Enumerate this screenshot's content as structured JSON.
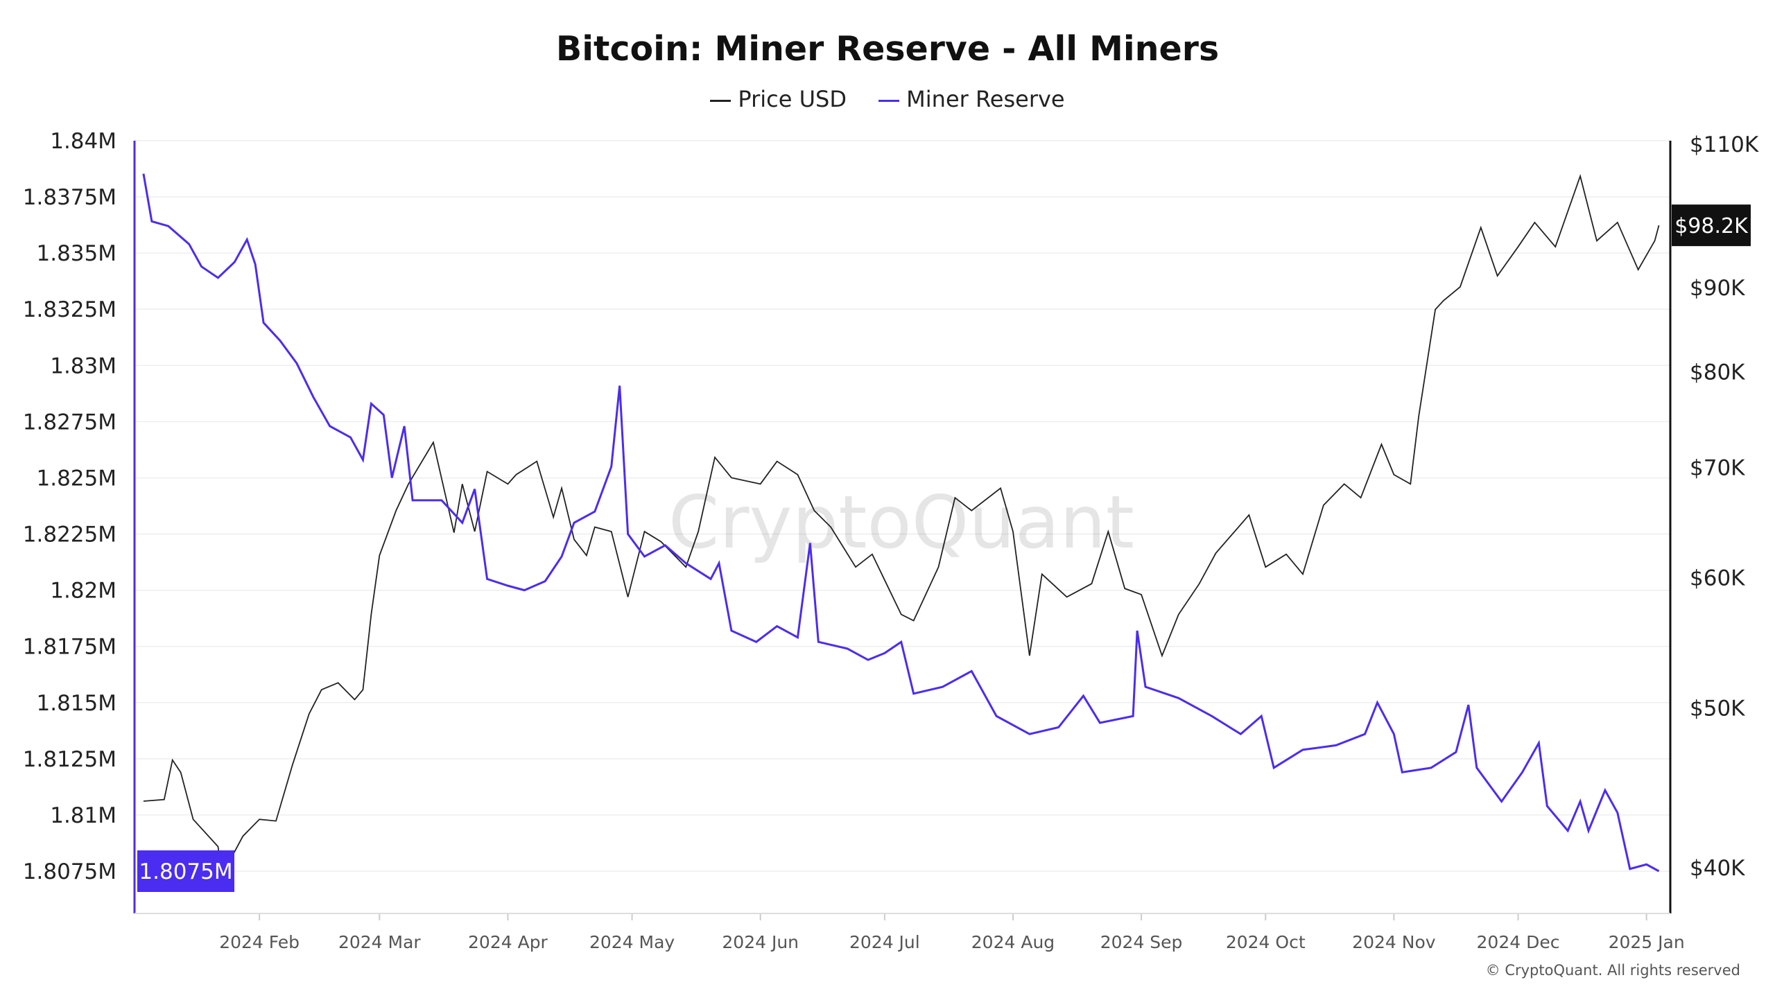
{
  "chart_data": {
    "type": "line",
    "title": "Bitcoin: Miner Reserve - All Miners",
    "legend": [
      "Price USD",
      "Miner Reserve"
    ],
    "legend_placement": "top-center",
    "colors": {
      "price": "#222222",
      "reserve": "#4a2df0"
    },
    "watermark": "CryptoQuant",
    "copyright": "© CryptoQuant. All rights reserved",
    "grid": "horizontal",
    "left_axis": {
      "ticks": [
        "1.84M",
        "1.8375M",
        "1.835M",
        "1.8325M",
        "1.83M",
        "1.8275M",
        "1.825M",
        "1.8225M",
        "1.82M",
        "1.8175M",
        "1.815M",
        "1.8125M",
        "1.81M",
        "1.8075M"
      ],
      "range": [
        1.8075,
        1.84
      ],
      "current_label": "1.8075M"
    },
    "right_axis": {
      "scale": "log",
      "ticks": [
        "$110K",
        "$90K",
        "$80K",
        "$70K",
        "$60K",
        "$50K",
        "$40K"
      ],
      "tick_values": [
        110000,
        90000,
        80000,
        70000,
        60000,
        50000,
        40000
      ],
      "current_label": "$98.2K"
    },
    "x_ticks": [
      "2024 Feb",
      "2024 Mar",
      "2024 Apr",
      "2024 May",
      "2024 Jun",
      "2024 Jul",
      "2024 Aug",
      "2024 Sep",
      "2024 Oct",
      "2024 Nov",
      "2024 Dec",
      "2025 Jan"
    ],
    "x_tick_dates": [
      "2024-02-01",
      "2024-03-01",
      "2024-04-01",
      "2024-05-01",
      "2024-06-01",
      "2024-07-01",
      "2024-08-01",
      "2024-09-01",
      "2024-10-01",
      "2024-11-01",
      "2024-12-01",
      "2025-01-01"
    ],
    "series": [
      {
        "name": "Price USD",
        "axis": "right",
        "points": [
          [
            "2024-01-04",
            43900
          ],
          [
            "2024-01-09",
            44000
          ],
          [
            "2024-01-11",
            46500
          ],
          [
            "2024-01-13",
            45700
          ],
          [
            "2024-01-16",
            42800
          ],
          [
            "2024-01-22",
            41200
          ],
          [
            "2024-01-23",
            39600
          ],
          [
            "2024-01-28",
            41800
          ],
          [
            "2024-02-01",
            42800
          ],
          [
            "2024-02-05",
            42700
          ],
          [
            "2024-02-09",
            46200
          ],
          [
            "2024-02-13",
            49600
          ],
          [
            "2024-02-16",
            51300
          ],
          [
            "2024-02-20",
            51800
          ],
          [
            "2024-02-24",
            50600
          ],
          [
            "2024-02-26",
            51300
          ],
          [
            "2024-02-28",
            57000
          ],
          [
            "2024-03-01",
            61900
          ],
          [
            "2024-03-05",
            65900
          ],
          [
            "2024-03-08",
            68400
          ],
          [
            "2024-03-14",
            72500
          ],
          [
            "2024-03-19",
            63900
          ],
          [
            "2024-03-21",
            68400
          ],
          [
            "2024-03-24",
            64000
          ],
          [
            "2024-03-27",
            69600
          ],
          [
            "2024-04-01",
            68400
          ],
          [
            "2024-04-03",
            69300
          ],
          [
            "2024-04-08",
            70600
          ],
          [
            "2024-04-12",
            65300
          ],
          [
            "2024-04-14",
            68000
          ],
          [
            "2024-04-17",
            63300
          ],
          [
            "2024-04-20",
            61900
          ],
          [
            "2024-04-22",
            64400
          ],
          [
            "2024-04-26",
            64000
          ],
          [
            "2024-04-30",
            58400
          ],
          [
            "2024-05-04",
            64000
          ],
          [
            "2024-05-08",
            63100
          ],
          [
            "2024-05-14",
            60900
          ],
          [
            "2024-05-17",
            64000
          ],
          [
            "2024-05-21",
            71000
          ],
          [
            "2024-05-25",
            69000
          ],
          [
            "2024-06-01",
            68400
          ],
          [
            "2024-06-05",
            70600
          ],
          [
            "2024-06-10",
            69300
          ],
          [
            "2024-06-14",
            65900
          ],
          [
            "2024-06-18",
            64400
          ],
          [
            "2024-06-24",
            60900
          ],
          [
            "2024-06-28",
            62000
          ],
          [
            "2024-07-05",
            57000
          ],
          [
            "2024-07-08",
            56500
          ],
          [
            "2024-07-14",
            60900
          ],
          [
            "2024-07-18",
            67100
          ],
          [
            "2024-07-22",
            65900
          ],
          [
            "2024-07-29",
            68000
          ],
          [
            "2024-08-01",
            64000
          ],
          [
            "2024-08-05",
            53800
          ],
          [
            "2024-08-08",
            60300
          ],
          [
            "2024-08-14",
            58400
          ],
          [
            "2024-08-20",
            59500
          ],
          [
            "2024-08-24",
            64000
          ],
          [
            "2024-08-28",
            59100
          ],
          [
            "2024-09-01",
            58600
          ],
          [
            "2024-09-06",
            53800
          ],
          [
            "2024-09-10",
            57000
          ],
          [
            "2024-09-15",
            59500
          ],
          [
            "2024-09-19",
            62100
          ],
          [
            "2024-09-27",
            65500
          ],
          [
            "2024-10-01",
            60900
          ],
          [
            "2024-10-06",
            62000
          ],
          [
            "2024-10-10",
            60300
          ],
          [
            "2024-10-15",
            66400
          ],
          [
            "2024-10-20",
            68400
          ],
          [
            "2024-10-24",
            67100
          ],
          [
            "2024-10-29",
            72300
          ],
          [
            "2024-11-01",
            69300
          ],
          [
            "2024-11-05",
            68400
          ],
          [
            "2024-11-07",
            75200
          ],
          [
            "2024-11-11",
            87300
          ],
          [
            "2024-11-13",
            88400
          ],
          [
            "2024-11-17",
            90100
          ],
          [
            "2024-11-22",
            97900
          ],
          [
            "2024-11-26",
            91500
          ],
          [
            "2024-12-01",
            95300
          ],
          [
            "2024-12-05",
            98600
          ],
          [
            "2024-12-10",
            95300
          ],
          [
            "2024-12-16",
            105200
          ],
          [
            "2024-12-20",
            96100
          ],
          [
            "2024-12-25",
            98600
          ],
          [
            "2024-12-30",
            92300
          ],
          [
            "2025-01-03",
            96100
          ],
          [
            "2025-01-04",
            98200
          ]
        ]
      },
      {
        "name": "Miner Reserve",
        "axis": "left",
        "unit": "M BTC",
        "points": [
          [
            "2024-01-04",
            1.83853
          ],
          [
            "2024-01-06",
            1.83641
          ],
          [
            "2024-01-10",
            1.8362
          ],
          [
            "2024-01-15",
            1.8354
          ],
          [
            "2024-01-18",
            1.8344
          ],
          [
            "2024-01-22",
            1.8339
          ],
          [
            "2024-01-26",
            1.8346
          ],
          [
            "2024-01-29",
            1.8356
          ],
          [
            "2024-01-31",
            1.8345
          ],
          [
            "2024-02-02",
            1.8319
          ],
          [
            "2024-02-06",
            1.8311
          ],
          [
            "2024-02-10",
            1.8301
          ],
          [
            "2024-02-14",
            1.8286
          ],
          [
            "2024-02-18",
            1.8273
          ],
          [
            "2024-02-23",
            1.8268
          ],
          [
            "2024-02-26",
            1.8258
          ],
          [
            "2024-02-28",
            1.8283
          ],
          [
            "2024-03-02",
            1.8278
          ],
          [
            "2024-03-04",
            1.825
          ],
          [
            "2024-03-07",
            1.8273
          ],
          [
            "2024-03-09",
            1.824
          ],
          [
            "2024-03-16",
            1.824
          ],
          [
            "2024-03-21",
            1.823
          ],
          [
            "2024-03-24",
            1.8245
          ],
          [
            "2024-03-27",
            1.8205
          ],
          [
            "2024-04-01",
            1.8202
          ],
          [
            "2024-04-05",
            1.82
          ],
          [
            "2024-04-10",
            1.8204
          ],
          [
            "2024-04-14",
            1.8215
          ],
          [
            "2024-04-17",
            1.823
          ],
          [
            "2024-04-22",
            1.8235
          ],
          [
            "2024-04-26",
            1.8255
          ],
          [
            "2024-04-28",
            1.8291
          ],
          [
            "2024-04-30",
            1.8225
          ],
          [
            "2024-05-04",
            1.8215
          ],
          [
            "2024-05-09",
            1.822
          ],
          [
            "2024-05-14",
            1.8212
          ],
          [
            "2024-05-20",
            1.8205
          ],
          [
            "2024-05-22",
            1.8212
          ],
          [
            "2024-05-25",
            1.8182
          ],
          [
            "2024-05-31",
            1.8177
          ],
          [
            "2024-06-05",
            1.8184
          ],
          [
            "2024-06-10",
            1.8179
          ],
          [
            "2024-06-13",
            1.8221
          ],
          [
            "2024-06-15",
            1.8177
          ],
          [
            "2024-06-22",
            1.8174
          ],
          [
            "2024-06-27",
            1.8169
          ],
          [
            "2024-07-01",
            1.8172
          ],
          [
            "2024-07-05",
            1.8177
          ],
          [
            "2024-07-08",
            1.8154
          ],
          [
            "2024-07-15",
            1.8157
          ],
          [
            "2024-07-22",
            1.8164
          ],
          [
            "2024-07-28",
            1.8144
          ],
          [
            "2024-08-05",
            1.8136
          ],
          [
            "2024-08-12",
            1.8139
          ],
          [
            "2024-08-18",
            1.8153
          ],
          [
            "2024-08-22",
            1.8141
          ],
          [
            "2024-08-30",
            1.8144
          ],
          [
            "2024-08-31",
            1.8182
          ],
          [
            "2024-09-02",
            1.8157
          ],
          [
            "2024-09-10",
            1.8152
          ],
          [
            "2024-09-18",
            1.8144
          ],
          [
            "2024-09-25",
            1.8136
          ],
          [
            "2024-09-30",
            1.8144
          ],
          [
            "2024-10-03",
            1.8121
          ],
          [
            "2024-10-10",
            1.8129
          ],
          [
            "2024-10-18",
            1.8131
          ],
          [
            "2024-10-25",
            1.8136
          ],
          [
            "2024-10-28",
            1.815
          ],
          [
            "2024-11-01",
            1.8136
          ],
          [
            "2024-11-03",
            1.8119
          ],
          [
            "2024-11-10",
            1.8121
          ],
          [
            "2024-11-16",
            1.8128
          ],
          [
            "2024-11-19",
            1.8149
          ],
          [
            "2024-11-21",
            1.8121
          ],
          [
            "2024-11-27",
            1.8106
          ],
          [
            "2024-12-02",
            1.8119
          ],
          [
            "2024-12-06",
            1.8132
          ],
          [
            "2024-12-08",
            1.8104
          ],
          [
            "2024-12-13",
            1.8093
          ],
          [
            "2024-12-16",
            1.8106
          ],
          [
            "2024-12-18",
            1.8093
          ],
          [
            "2024-12-22",
            1.8111
          ],
          [
            "2024-12-25",
            1.8101
          ],
          [
            "2024-12-28",
            1.8076
          ],
          [
            "2025-01-01",
            1.8078
          ],
          [
            "2025-01-04",
            1.8075
          ]
        ]
      }
    ]
  }
}
